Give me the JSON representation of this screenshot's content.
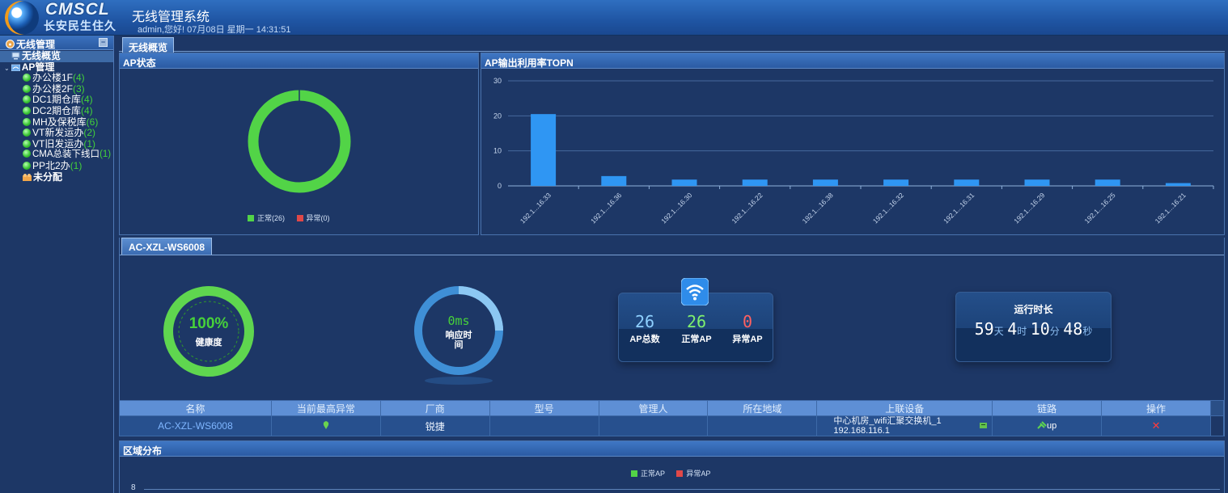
{
  "header": {
    "logo_en": "CMSCL",
    "logo_cn": "长安民生住久",
    "title": "无线管理系统",
    "welcome": "admin,您好! 07月08日 星期一 14:31:51"
  },
  "sidebar": {
    "title": "无线管理",
    "collapse_glyph": "−",
    "items": [
      {
        "label": "无线概览",
        "count": "",
        "icon": "monitor-icon"
      },
      {
        "label": "AP管理",
        "count": "",
        "icon": "wifi-group-icon"
      },
      {
        "label": "办公楼1F",
        "count": "(4)",
        "icon": "status-dot-icon"
      },
      {
        "label": "办公楼2F",
        "count": "(3)",
        "icon": "status-dot-icon"
      },
      {
        "label": "DC1期仓库",
        "count": "(4)",
        "icon": "status-dot-icon"
      },
      {
        "label": "DC2期仓库",
        "count": "(4)",
        "icon": "status-dot-icon"
      },
      {
        "label": "MH及保税库",
        "count": "(6)",
        "icon": "status-dot-icon"
      },
      {
        "label": "VT新发运办",
        "count": "(2)",
        "icon": "status-dot-icon"
      },
      {
        "label": "VT旧发运办",
        "count": "(1)",
        "icon": "status-dot-icon"
      },
      {
        "label": "CMA总装下线口",
        "count": "(1)",
        "icon": "status-dot-icon"
      },
      {
        "label": "PP北2办",
        "count": "(1)",
        "icon": "status-dot-icon"
      },
      {
        "label": "未分配",
        "count": "",
        "icon": "unassigned-icon"
      }
    ]
  },
  "main_tab": "无线概览",
  "ap_status": {
    "title": "AP状态",
    "normal_label": "正常(26)",
    "abnormal_label": "异常(0)",
    "normal": 26,
    "abnormal": 0,
    "colors": {
      "normal": "#52d447",
      "abnormal": "#e04848"
    }
  },
  "topn": {
    "title": "AP输出利用率TOPN",
    "chart_data": {
      "type": "bar",
      "categories": [
        "192.1...16.33",
        "192.1...16.36",
        "192.1...16.30",
        "192.1...16.22",
        "192.1...16.38",
        "192.1...16.32",
        "192.1...16.31",
        "192.1...16.29",
        "192.1...16.25",
        "192.1...16.21"
      ],
      "values": [
        20.5,
        2.8,
        1.8,
        1.8,
        1.8,
        1.8,
        1.8,
        1.8,
        1.8,
        0.8
      ],
      "yticks": [
        "0",
        "10",
        "20",
        "30"
      ],
      "ylim": [
        0,
        30
      ],
      "grid": true,
      "bar_color": "#2f96f3"
    }
  },
  "device": {
    "tab": "AC-XZL-WS6008",
    "health_value": "100%",
    "health_label": "健康度",
    "health_fraction": 1.0,
    "response_value": "0ms",
    "response_label": "响应时间",
    "ap_total": "26",
    "ap_normal": "26",
    "ap_abnormal": "0",
    "ap_total_label": "AP总数",
    "ap_normal_label": "正常AP",
    "ap_abnormal_label": "异常AP",
    "uptime_title": "运行时长",
    "uptime": {
      "days": "59",
      "days_unit": "天",
      "hours": "4",
      "hours_unit": "时",
      "mins": "10",
      "mins_unit": "分",
      "secs": "48",
      "secs_unit": "秒"
    }
  },
  "table": {
    "headers": [
      "名称",
      "当前最高异常",
      "厂商",
      "型号",
      "管理人",
      "所在地域",
      "上联设备",
      "链路",
      "操作"
    ],
    "row": {
      "name": "AC-XZL-WS6008",
      "vendor": "锐捷",
      "model": "",
      "manager": "",
      "region": "",
      "uplink_line1": "中心机房_wifi汇聚交换机_1",
      "uplink_line2": "192.168.116.1",
      "link": "up",
      "action_glyph": "✕"
    }
  },
  "region": {
    "title": "区域分布",
    "legend_normal": "正常AP",
    "legend_abnormal": "异常AP",
    "y_top": "8"
  }
}
